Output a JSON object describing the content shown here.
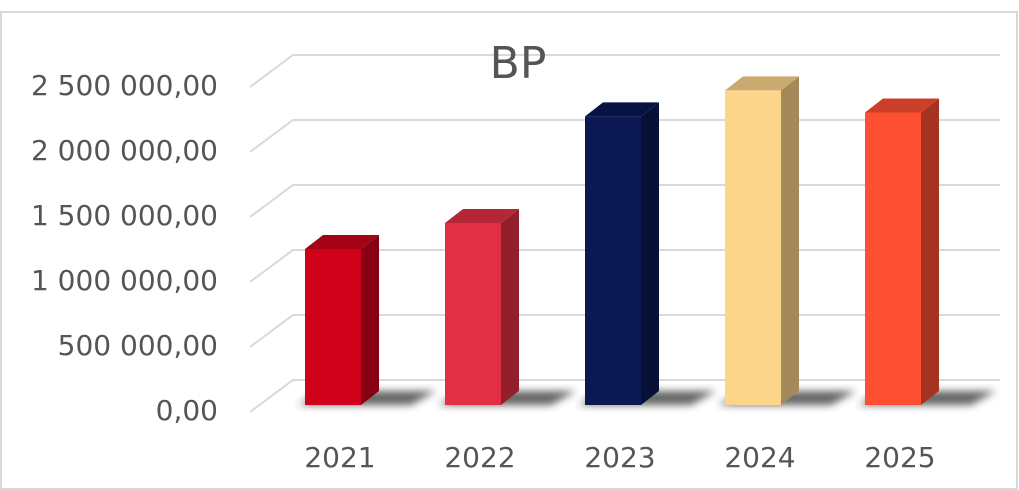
{
  "chart_data": {
    "type": "bar3d",
    "title": "BP",
    "categories": [
      "2021",
      "2022",
      "2023",
      "2024",
      "2025"
    ],
    "values": [
      1200000,
      1400000,
      2220000,
      2420000,
      2250000
    ],
    "colors": [
      "#d0021b",
      "#e22f45",
      "#0b1854",
      "#fdd58a",
      "#fe4f33"
    ],
    "ylim": [
      0,
      2500000
    ],
    "yticks": [
      {
        "value": 0,
        "label": "0,00"
      },
      {
        "value": 500000,
        "label": "500 000,00"
      },
      {
        "value": 1000000,
        "label": "1 000 000,00"
      },
      {
        "value": 1500000,
        "label": "1 500 000,00"
      },
      {
        "value": 2000000,
        "label": "2 000 000,00"
      },
      {
        "value": 2500000,
        "label": "2 500 000,00"
      }
    ],
    "grid": true
  }
}
